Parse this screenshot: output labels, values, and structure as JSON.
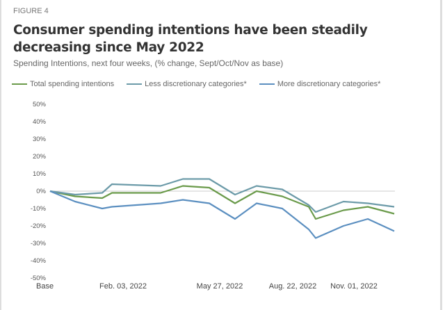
{
  "figure_label": "FIGURE 4",
  "chart_data": {
    "type": "line",
    "title": "Consumer spending intentions have been steadily decreasing since May 2022",
    "subtitle": "Spending Intentions, next four weeks, (% change, Sept/Oct/Nov as base)",
    "x_tick_labels": [
      "Base",
      "Feb. 03, 2022",
      "May 27, 2022",
      "Aug. 22, 2022",
      "Nov. 01, 2022"
    ],
    "y_ticks": [
      "50%",
      "40%",
      "30%",
      "20%",
      "10%",
      "0%",
      "-10%",
      "-20%",
      "-30%",
      "-40%",
      "-50%"
    ],
    "ylim": [
      -50,
      50
    ],
    "y_unit": "%",
    "grid": false,
    "zero_line": true,
    "legend_position": "top-left",
    "series": [
      {
        "name": "Total spending intentions",
        "color": "#6a9a4a",
        "values": [
          0,
          -3,
          -4,
          -1,
          -1,
          3,
          2,
          -7,
          0,
          -3,
          -9,
          -16,
          -11,
          -9,
          -13
        ]
      },
      {
        "name": "Less discretionary categories*",
        "color": "#6b9aa8",
        "values": [
          0,
          -2,
          -1,
          4,
          3,
          7,
          7,
          -2,
          3,
          1,
          -8,
          -12,
          -6,
          -7,
          -9
        ]
      },
      {
        "name": "More discretionary categories*",
        "color": "#5b8fc0",
        "values": [
          0,
          -6,
          -10,
          -9,
          -7,
          -5,
          -7,
          -16,
          -7,
          -10,
          -22,
          -27,
          -20,
          -16,
          -23
        ]
      }
    ]
  }
}
